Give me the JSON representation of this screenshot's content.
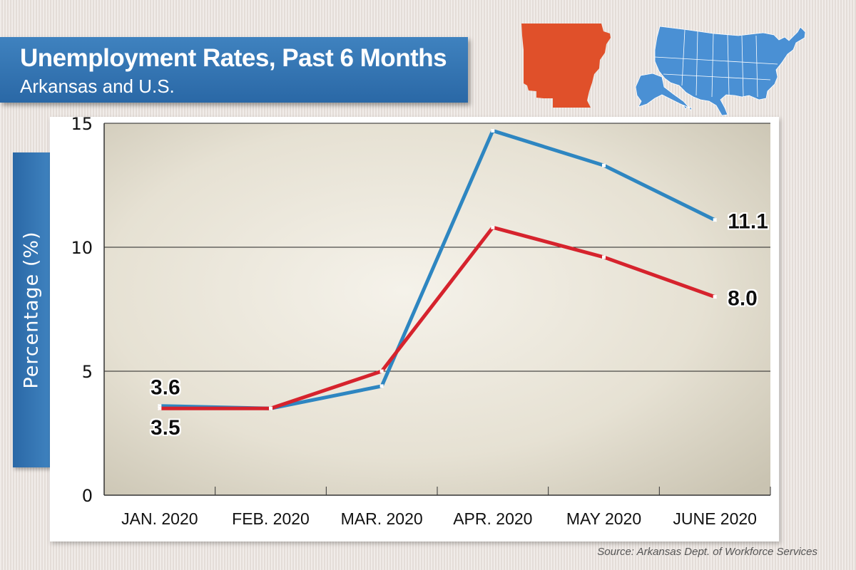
{
  "header": {
    "title": "Unemployment Rates, Past 6 Months",
    "subtitle": "Arkansas and U.S."
  },
  "source": "Source: Arkansas Dept. of Workforce Services",
  "colors": {
    "banner": "#2f71b1",
    "us_line": "#2e86c1",
    "arkansas_line": "#d6232d",
    "arkansas_map": "#e0502a",
    "us_map": "#4a90d4"
  },
  "chart_data": {
    "type": "line",
    "title": "Unemployment Rates, Past 6 Months",
    "subtitle": "Arkansas and U.S.",
    "ylabel": "Percentage (%)",
    "xlabel": "",
    "categories": [
      "JAN. 2020",
      "FEB. 2020",
      "MAR. 2020",
      "APR. 2020",
      "MAY 2020",
      "JUNE 2020"
    ],
    "ylim": [
      0,
      15
    ],
    "yticks": [
      0,
      5,
      10,
      15
    ],
    "grid": true,
    "series": [
      {
        "color": "#2e86c1",
        "values": [
          3.6,
          3.5,
          4.4,
          14.7,
          13.3,
          11.1
        ],
        "labels": {
          "0": "3.6",
          "5": "11.1"
        }
      },
      {
        "color": "#d6232d",
        "values": [
          3.5,
          3.5,
          5.0,
          10.8,
          9.6,
          8.0
        ],
        "labels": {
          "0": "3.5",
          "5": "8.0"
        }
      }
    ]
  }
}
